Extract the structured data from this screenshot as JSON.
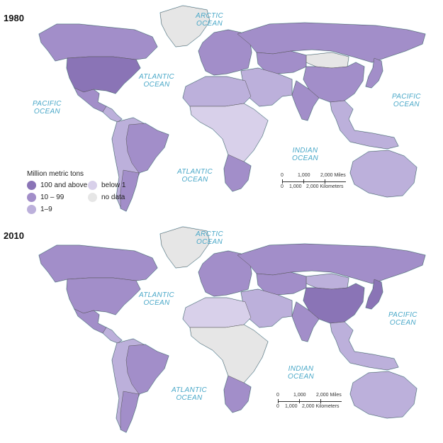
{
  "colors": {
    "c100": "#8a74b6",
    "c10": "#a28ec9",
    "c1": "#bcb0db",
    "below1": "#d8d0ea",
    "nodata": "#e6e6e6",
    "border": "#555555",
    "coast": "#7dcbe6"
  },
  "maps": [
    {
      "year": "1980",
      "oceans": {
        "arctic": "ARCTIC\nOCEAN",
        "atlantic_n": "ATLANTIC\nOCEAN",
        "pacific_w": "PACIFIC\nOCEAN",
        "pacific_e": "PACIFIC\nOCEAN",
        "indian": "INDIAN\nOCEAN",
        "atlantic_s": "ATLANTIC\nOCEAN"
      },
      "scale": {
        "miles": [
          "0",
          "1,000",
          "2,000 Miles"
        ],
        "km": [
          "0",
          "1,000",
          "2,000 Kilometers"
        ]
      },
      "regions": {
        "north_america": "c10",
        "usa": "c100",
        "mexico": "c10",
        "central_america": "c1",
        "greenland": "nodata",
        "south_america": "c1",
        "brazil": "c10",
        "argentina": "c10",
        "europe": "c10",
        "russia": "c10",
        "mongolia": "nodata",
        "central_asia": "c10",
        "china": "c10",
        "india": "c10",
        "middle_east": "c1",
        "africa_north": "c1",
        "africa_mid": "below1",
        "south_africa": "c10",
        "se_asia": "c1",
        "japan": "c10",
        "australia": "c1"
      }
    },
    {
      "year": "2010",
      "oceans": {
        "arctic": "ARCTIC\nOCEAN",
        "atlantic_n": "ATLANTIC\nOCEAN",
        "pacific_w": "",
        "pacific_e": "PACIFIC\nOCEAN",
        "indian": "INDIAN\nOCEAN",
        "atlantic_s": "ATLANTIC\nOCEAN"
      },
      "scale": {
        "miles": [
          "0",
          "1,000",
          "2,000 Miles"
        ],
        "km": [
          "0",
          "1,000",
          "2,000 Kilometers"
        ]
      },
      "regions": {
        "north_america": "c10",
        "usa": "c10",
        "mexico": "c10",
        "central_america": "c1",
        "greenland": "nodata",
        "south_america": "c1",
        "brazil": "c10",
        "argentina": "c10",
        "europe": "c10",
        "russia": "c10",
        "mongolia": "c1",
        "central_asia": "c10",
        "china": "c100",
        "india": "c10",
        "middle_east": "c1",
        "africa_north": "below1",
        "africa_mid": "nodata",
        "south_africa": "c10",
        "se_asia": "c1",
        "japan": "c100",
        "australia": "c1"
      }
    }
  ],
  "legend": {
    "title": "Million metric tons",
    "items": [
      {
        "label": "100 and above",
        "color": "c100"
      },
      {
        "label": "10 – 99",
        "color": "c10"
      },
      {
        "label": "1–9",
        "color": "c1"
      },
      {
        "label": "below 1",
        "color": "below1"
      },
      {
        "label": "no data",
        "color": "nodata"
      }
    ]
  }
}
